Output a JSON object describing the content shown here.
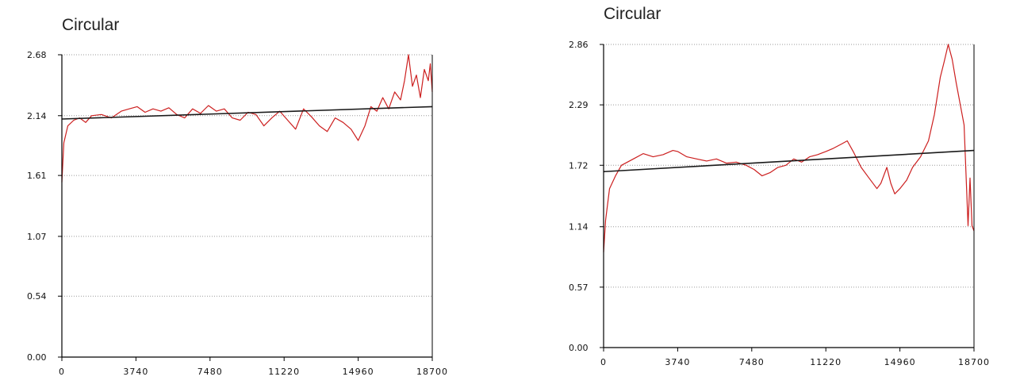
{
  "chart_data": [
    {
      "type": "line",
      "title": "Circular",
      "xlim": [
        0,
        18700
      ],
      "ylim": [
        0,
        2.68
      ],
      "x_ticks": [
        "0",
        "3740",
        "7480",
        "11220",
        "14960",
        "18700"
      ],
      "y_ticks": [
        "0.00",
        "0.54",
        "1.07",
        "1.61",
        "2.14",
        "2.68"
      ],
      "grid": "horizontal dotted",
      "series": [
        {
          "style": "noisy line",
          "color": "#cc1f1f",
          "x": [
            0,
            100,
            300,
            600,
            900,
            1200,
            1500,
            2000,
            2500,
            3000,
            3400,
            3800,
            4200,
            4600,
            5000,
            5400,
            5800,
            6200,
            6600,
            7000,
            7400,
            7800,
            8200,
            8600,
            9000,
            9400,
            9800,
            10200,
            10600,
            11000,
            11400,
            11800,
            12200,
            12600,
            13000,
            13400,
            13800,
            14200,
            14600,
            14960,
            15300,
            15600,
            15900,
            16200,
            16500,
            16800,
            17100,
            17300,
            17500,
            17700,
            17900,
            18100,
            18300,
            18500,
            18600,
            18700
          ],
          "y": [
            1.55,
            1.9,
            2.05,
            2.1,
            2.12,
            2.08,
            2.14,
            2.15,
            2.12,
            2.18,
            2.2,
            2.22,
            2.17,
            2.2,
            2.18,
            2.21,
            2.15,
            2.12,
            2.2,
            2.16,
            2.23,
            2.18,
            2.2,
            2.12,
            2.1,
            2.17,
            2.15,
            2.05,
            2.12,
            2.18,
            2.1,
            2.02,
            2.2,
            2.13,
            2.05,
            2.0,
            2.12,
            2.08,
            2.02,
            1.92,
            2.05,
            2.22,
            2.18,
            2.3,
            2.2,
            2.35,
            2.28,
            2.45,
            2.68,
            2.4,
            2.5,
            2.3,
            2.55,
            2.45,
            2.6,
            2.35
          ]
        },
        {
          "style": "trend line",
          "color": "#1a1a1a",
          "x": [
            0,
            18700
          ],
          "y": [
            2.11,
            2.22
          ]
        }
      ]
    },
    {
      "type": "line",
      "title": "Circular",
      "xlim": [
        0,
        18700
      ],
      "ylim": [
        0,
        2.86
      ],
      "x_ticks": [
        "0",
        "3740",
        "7480",
        "11220",
        "14960",
        "18700"
      ],
      "y_ticks": [
        "0.00",
        "0.57",
        "1.14",
        "1.72",
        "2.29",
        "2.86"
      ],
      "grid": "horizontal dotted",
      "series": [
        {
          "style": "noisy line",
          "color": "#cc1f1f",
          "x": [
            0,
            100,
            300,
            600,
            900,
            1200,
            1500,
            2000,
            2500,
            3000,
            3500,
            3740,
            4200,
            4700,
            5200,
            5700,
            6200,
            6700,
            7200,
            7600,
            8000,
            8400,
            8800,
            9200,
            9600,
            10000,
            10400,
            10800,
            11220,
            11600,
            12000,
            12300,
            12600,
            13000,
            13400,
            13800,
            14000,
            14300,
            14500,
            14700,
            14960,
            15300,
            15600,
            16000,
            16400,
            16700,
            17000,
            17200,
            17400,
            17600,
            17800,
            18000,
            18200,
            18400,
            18500,
            18600,
            18700
          ],
          "y": [
            0.9,
            1.2,
            1.5,
            1.62,
            1.72,
            1.75,
            1.78,
            1.83,
            1.8,
            1.82,
            1.86,
            1.85,
            1.8,
            1.78,
            1.76,
            1.78,
            1.74,
            1.75,
            1.72,
            1.68,
            1.62,
            1.65,
            1.7,
            1.72,
            1.78,
            1.75,
            1.8,
            1.82,
            1.85,
            1.88,
            1.92,
            1.95,
            1.85,
            1.7,
            1.6,
            1.5,
            1.55,
            1.7,
            1.55,
            1.45,
            1.5,
            1.58,
            1.7,
            1.8,
            1.95,
            2.2,
            2.55,
            2.7,
            2.86,
            2.72,
            2.5,
            2.3,
            2.1,
            1.15,
            1.6,
            1.15,
            1.1
          ]
        },
        {
          "style": "trend line",
          "color": "#1a1a1a",
          "x": [
            0,
            18700
          ],
          "y": [
            1.66,
            1.86
          ]
        }
      ]
    }
  ]
}
